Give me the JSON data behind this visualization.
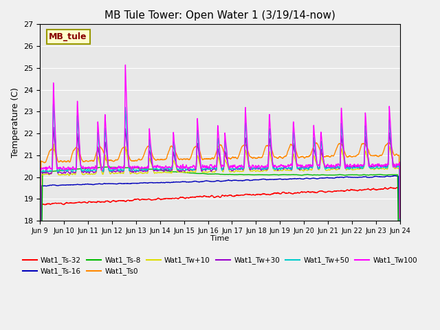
{
  "title": "MB Tule Tower: Open Water 1 (3/19/14-now)",
  "xlabel": "Time",
  "ylabel": "Temperature (C)",
  "ylim": [
    18.0,
    27.0
  ],
  "yticks": [
    18.0,
    19.0,
    20.0,
    21.0,
    22.0,
    23.0,
    24.0,
    25.0,
    26.0,
    27.0
  ],
  "xtick_labels": [
    "Jun 9",
    "Jun 10",
    "Jun 11",
    "Jun 12",
    "Jun 13",
    "Jun 14",
    "Jun 15",
    "Jun 16",
    "Jun 17",
    "Jun 18",
    "Jun 19",
    "Jun 20",
    "Jun 21",
    "Jun 22",
    "Jun 23",
    "Jun 24"
  ],
  "legend_labels": [
    "Wat1_Ts-32",
    "Wat1_Ts-16",
    "Wat1_Ts-8",
    "Wat1_Ts0",
    "Wat1_Tw+10",
    "Wat1_Tw+30",
    "Wat1_Tw+50",
    "Wat1_Tw100"
  ],
  "legend_colors": [
    "#ff0000",
    "#0000bb",
    "#00bb00",
    "#ff8800",
    "#dddd00",
    "#9900cc",
    "#00cccc",
    "#ff00ff"
  ],
  "plot_bg_color": "#e8e8e8",
  "fig_bg_color": "#f0f0f0",
  "title_fontsize": 11,
  "annotation_text": "MB_tule",
  "annotation_color": "#880000",
  "annotation_bg": "#ffffcc",
  "annotation_border": "#999900"
}
